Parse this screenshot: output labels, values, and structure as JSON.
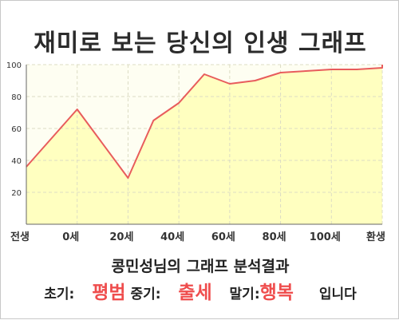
{
  "chart_data": {
    "type": "area",
    "title": "재미로 보는 당신의 인생 그래프",
    "xlabel": "",
    "ylabel": "",
    "x": [
      0,
      8,
      16,
      20,
      24,
      28,
      32,
      36,
      40,
      44,
      48,
      52,
      56,
      60
    ],
    "values": [
      36,
      72,
      29,
      65,
      76,
      94,
      88,
      90,
      95,
      96,
      97,
      97,
      98,
      100
    ],
    "x_ticks": [
      {
        "pos": 0,
        "label": "전생"
      },
      {
        "pos": 8,
        "label": "0세"
      },
      {
        "pos": 16,
        "label": "20세"
      },
      {
        "pos": 24,
        "label": "40세"
      },
      {
        "pos": 32,
        "label": "60세"
      },
      {
        "pos": 40,
        "label": "80세"
      },
      {
        "pos": 48,
        "label": "100세"
      },
      {
        "pos": 56,
        "label": "환생"
      }
    ],
    "xlim": [
      0,
      56
    ],
    "ylim": [
      0,
      100
    ],
    "y_ticks": [
      20,
      40,
      60,
      80,
      100
    ],
    "grid": true,
    "colors": {
      "fill": "#ffffc0",
      "line": "#e85c5c",
      "plot_bg": "#fefef2"
    }
  },
  "result": {
    "title": "콩민성님의 그래프 분석결과",
    "early_label": "초기:",
    "early_value": "평범",
    "mid_label": "중기:",
    "mid_value": "출세",
    "late_label": "말기:",
    "late_value": "행복",
    "suffix": "입니다"
  }
}
